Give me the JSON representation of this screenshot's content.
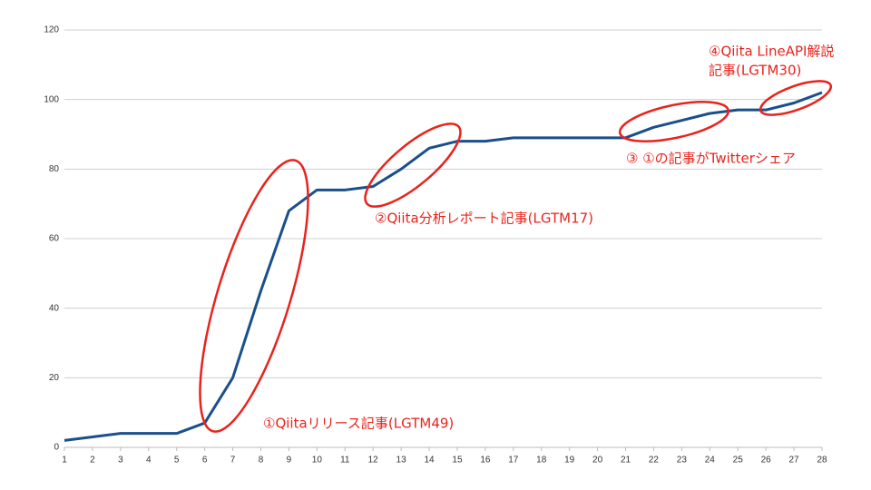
{
  "chart_data": {
    "type": "line",
    "x": [
      1,
      2,
      3,
      4,
      5,
      6,
      7,
      8,
      9,
      10,
      11,
      12,
      13,
      14,
      15,
      16,
      17,
      18,
      19,
      20,
      21,
      22,
      23,
      24,
      25,
      26,
      27,
      28
    ],
    "series": [
      {
        "color": "#1a4f8b",
        "values": [
          2,
          3,
          4,
          4,
          4,
          7,
          20,
          45,
          68,
          74,
          74,
          75,
          80,
          86,
          88,
          88,
          89,
          89,
          89,
          89,
          89,
          92,
          94,
          96,
          97,
          97,
          99,
          102
        ]
      }
    ],
    "xlim": [
      1,
      28
    ],
    "xticks": [
      1,
      2,
      3,
      4,
      5,
      6,
      7,
      8,
      9,
      10,
      11,
      12,
      13,
      14,
      15,
      16,
      17,
      18,
      19,
      20,
      21,
      22,
      23,
      24,
      25,
      26,
      27,
      28
    ],
    "ylim": [
      0,
      120
    ],
    "yticks": [
      0,
      20,
      40,
      60,
      80,
      100,
      120
    ],
    "grid": true,
    "annotation_color": "#e8231c",
    "annotations": [
      {
        "lines": [
          "①Qiitaリリース記事(LGTM49)"
        ]
      },
      {
        "lines": [
          "②Qiita分析レポート記事(LGTM17)"
        ]
      },
      {
        "lines": [
          "③ ①の記事がTwitterシェア"
        ]
      },
      {
        "lines": [
          "④Qiita LineAPI解説",
          "記事(LGTM30)"
        ]
      }
    ]
  }
}
